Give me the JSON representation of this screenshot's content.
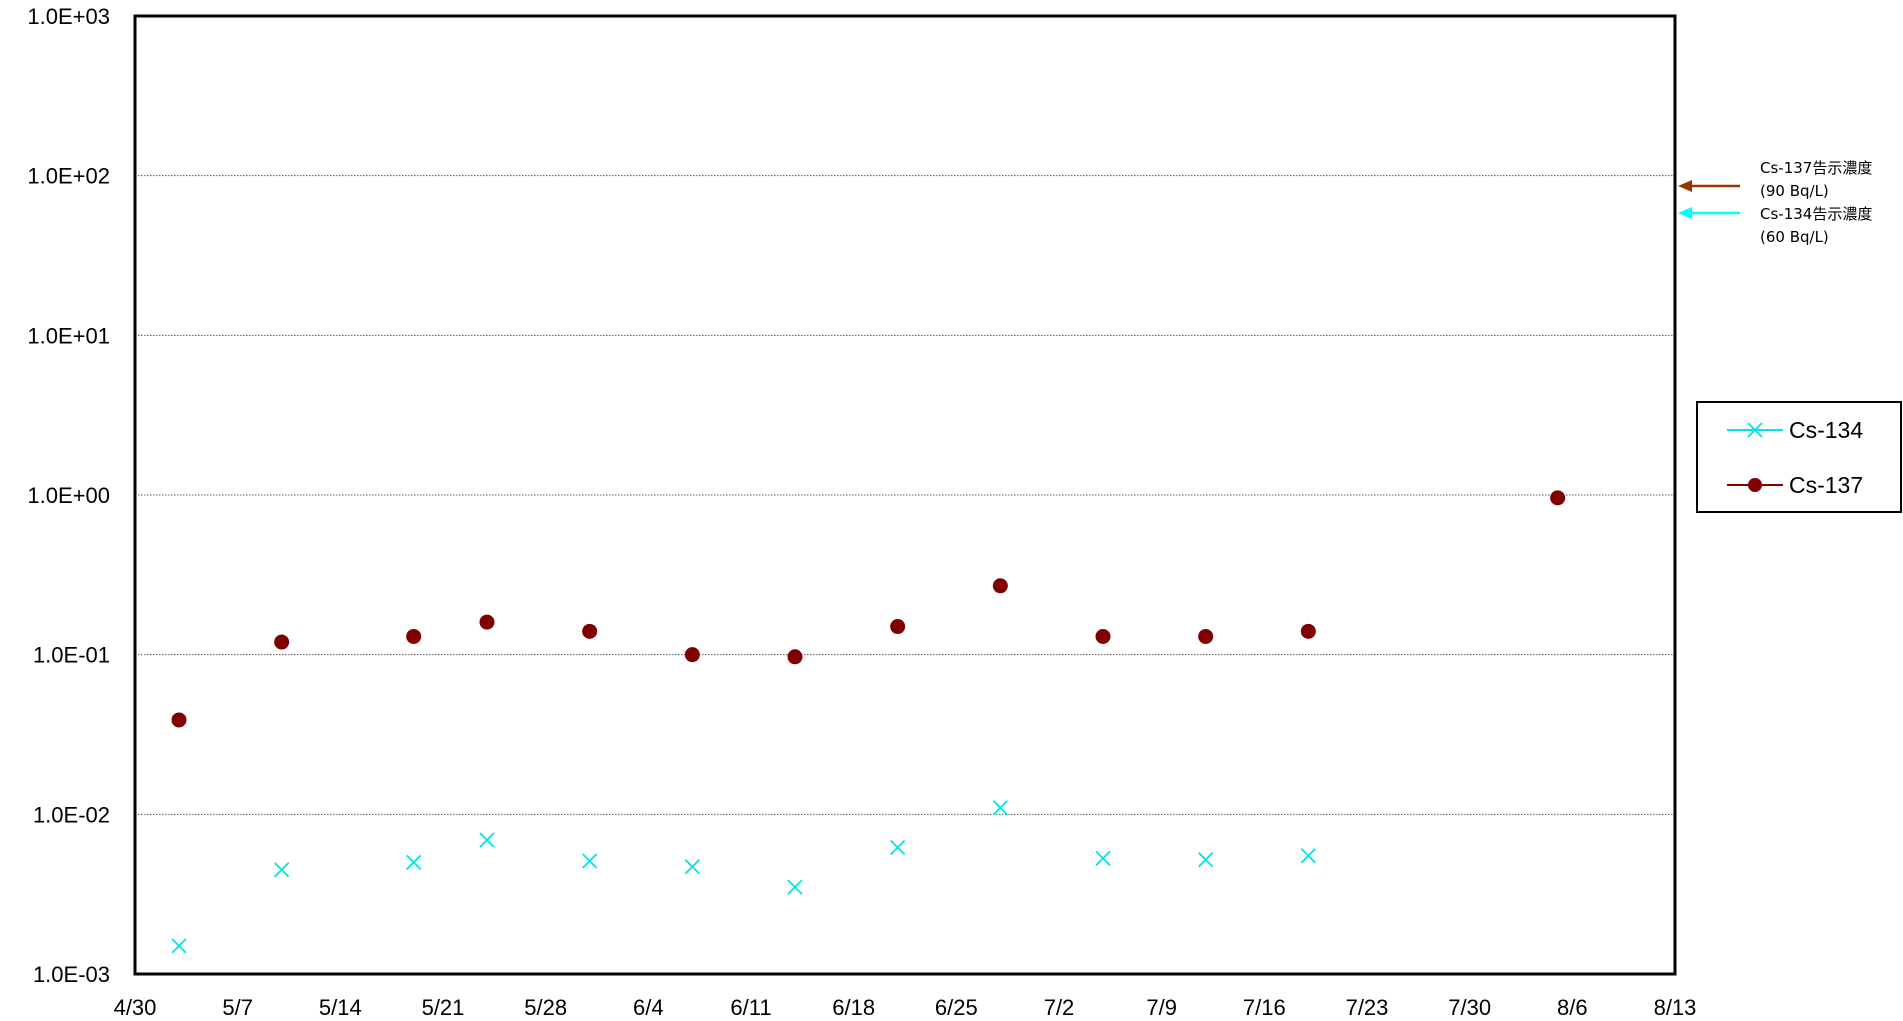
{
  "chart_data": {
    "type": "scatter",
    "title": "",
    "xlabel": "",
    "ylabel": "",
    "y_scale": "log",
    "ylim": [
      0.001,
      1000
    ],
    "y_tick_labels": [
      "1.0E+03",
      "1.0E+02",
      "1.0E+01",
      "1.0E+00",
      "1.0E-01",
      "1.0E-02",
      "1.0E-03"
    ],
    "x_tick_labels": [
      "4/30",
      "5/7",
      "5/14",
      "5/21",
      "5/28",
      "6/4",
      "6/11",
      "6/18",
      "6/25",
      "7/2",
      "7/9",
      "7/16",
      "7/23",
      "7/30",
      "8/6",
      "8/13"
    ],
    "xlim": [
      "4/30",
      "8/13"
    ],
    "grid": "horizontal dotted",
    "legend_position": "right",
    "series": [
      {
        "name": "Cs-134",
        "color": "#00e5e5",
        "marker": "x",
        "x": [
          "5/3",
          "5/10",
          "5/19",
          "5/24",
          "5/31",
          "6/7",
          "6/14",
          "6/21",
          "6/28",
          "7/5",
          "7/12",
          "7/19"
        ],
        "values": [
          0.0015,
          0.0045,
          0.005,
          0.0069,
          0.0051,
          0.0047,
          0.0035,
          0.0062,
          0.011,
          0.0053,
          0.0052,
          0.0055
        ]
      },
      {
        "name": "Cs-137",
        "color": "#800000",
        "marker": "circle",
        "x": [
          "5/3",
          "5/10",
          "5/19",
          "5/24",
          "5/31",
          "6/7",
          "6/14",
          "6/21",
          "6/28",
          "7/5",
          "7/12",
          "7/19",
          "8/5"
        ],
        "values": [
          0.039,
          0.12,
          0.13,
          0.16,
          0.14,
          0.1,
          0.097,
          0.15,
          0.27,
          0.13,
          0.13,
          0.14,
          0.96
        ]
      }
    ],
    "annotations": [
      {
        "line1": "Cs-137告示濃度",
        "line2": "(90 Bq/L)",
        "color": "#993300",
        "value": 90
      },
      {
        "line1": "Cs-134告示濃度",
        "line2": "(60 Bq/L)",
        "color": "#00ffff",
        "value": 60
      }
    ]
  }
}
